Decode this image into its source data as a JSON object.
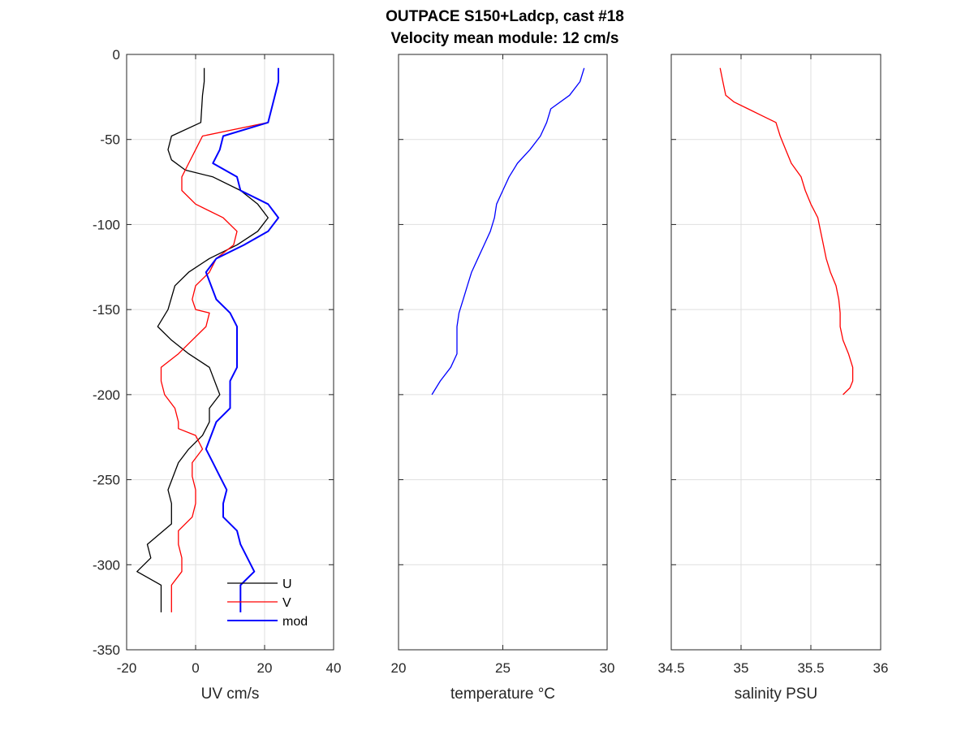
{
  "figure": {
    "title_line1": "OUTPACE S150+Ladcp, cast #18",
    "title_line2": "Velocity mean module:  12 cm/s"
  },
  "chart_data": [
    {
      "type": "line",
      "xlabel": "UV cm/s",
      "ylabel": "",
      "xlim": [
        -20,
        40
      ],
      "ylim": [
        -350,
        0
      ],
      "xticks": [
        -20,
        0,
        20,
        40
      ],
      "yticks": [
        0,
        -50,
        -100,
        -150,
        -200,
        -250,
        -300,
        -350
      ],
      "grid": true,
      "legend": {
        "placement": "bottom-right",
        "entries": [
          "U",
          "V",
          "mod"
        ]
      },
      "series": [
        {
          "name": "U",
          "color": "#000000",
          "x": [
            2.5,
            2.5,
            2,
            1.5,
            -7,
            -8,
            -7,
            -3,
            5,
            13,
            18,
            21,
            18,
            12,
            4,
            -2,
            -6,
            -8,
            -11,
            -7,
            -2,
            4,
            7,
            4,
            4,
            2,
            -2,
            -5,
            -8,
            -7,
            -7,
            -14,
            -13,
            -17,
            -10,
            -10
          ],
          "y": [
            -8,
            -16,
            -24,
            -40,
            -48,
            -56,
            -62,
            -68,
            -72,
            -80,
            -88,
            -96,
            -104,
            -112,
            -120,
            -128,
            -136,
            -150,
            -160,
            -168,
            -176,
            -184,
            -200,
            -208,
            -216,
            -224,
            -232,
            -240,
            -256,
            -264,
            -276,
            -288,
            -296,
            -304,
            -312,
            -328
          ]
        },
        {
          "name": "V",
          "color": "#ff0000",
          "x": [
            21,
            2,
            0,
            -2,
            -4,
            -4,
            0,
            8,
            12,
            11,
            6,
            4,
            0,
            -1,
            0,
            4,
            3,
            -1,
            -5,
            -10,
            -10,
            -9,
            -6,
            -5,
            -5,
            0,
            2,
            -1,
            -1,
            0,
            0,
            -1,
            -5,
            -5,
            -4,
            -4,
            -7,
            -7
          ],
          "y": [
            -40,
            -48,
            -56,
            -64,
            -72,
            -80,
            -88,
            -96,
            -104,
            -112,
            -120,
            -128,
            -136,
            -144,
            -150,
            -152,
            -160,
            -168,
            -176,
            -184,
            -192,
            -200,
            -208,
            -216,
            -220,
            -224,
            -232,
            -240,
            -248,
            -256,
            -264,
            -272,
            -280,
            -288,
            -296,
            -304,
            -312,
            -328
          ]
        },
        {
          "name": "mod",
          "color": "#0000ff",
          "x": [
            24,
            24,
            23,
            21,
            8,
            7,
            5,
            12,
            13,
            21,
            24,
            21,
            14,
            6,
            3,
            6,
            10,
            12,
            12,
            12,
            12,
            10,
            10,
            6,
            3,
            5,
            7,
            9,
            8,
            8,
            12,
            13,
            15,
            17,
            13,
            13,
            13
          ],
          "y": [
            -8,
            -16,
            -24,
            -40,
            -48,
            -56,
            -64,
            -72,
            -80,
            -88,
            -96,
            -104,
            -112,
            -120,
            -128,
            -144,
            -152,
            -160,
            -168,
            -176,
            -184,
            -192,
            -208,
            -216,
            -232,
            -240,
            -248,
            -256,
            -264,
            -272,
            -280,
            -288,
            -296,
            -304,
            -312,
            -320,
            -328
          ]
        }
      ]
    },
    {
      "type": "line",
      "xlabel": "temperature °C",
      "ylabel": "",
      "xlim": [
        20,
        30
      ],
      "ylim": [
        -350,
        0
      ],
      "xticks": [
        20,
        25,
        30
      ],
      "yticks": [
        0,
        -50,
        -100,
        -150,
        -200,
        -250,
        -300,
        -350
      ],
      "grid": true,
      "series": [
        {
          "name": "",
          "color": "#0000ff",
          "x": [
            28.9,
            28.7,
            28.2,
            27.3,
            27.1,
            26.8,
            26.3,
            25.7,
            25.3,
            25.0,
            24.7,
            24.6,
            24.4,
            24.1,
            23.8,
            23.5,
            23.3,
            23.1,
            22.9,
            22.8,
            22.8,
            22.5,
            22.0,
            21.6
          ],
          "y": [
            -8,
            -16,
            -24,
            -32,
            -40,
            -48,
            -56,
            -64,
            -72,
            -80,
            -88,
            -96,
            -104,
            -112,
            -120,
            -128,
            -136,
            -144,
            -152,
            -160,
            -176,
            -184,
            -192,
            -200
          ]
        }
      ]
    },
    {
      "type": "line",
      "xlabel": "salinity PSU",
      "ylabel": "",
      "xlim": [
        34.5,
        36
      ],
      "ylim": [
        -350,
        0
      ],
      "xticks": [
        34.5,
        35,
        35.5,
        36
      ],
      "yticks": [
        0,
        -50,
        -100,
        -150,
        -200,
        -250,
        -300,
        -350
      ],
      "grid": true,
      "series": [
        {
          "name": "",
          "color": "#ff0000",
          "x": [
            34.85,
            34.87,
            34.89,
            34.95,
            35.05,
            35.15,
            35.25,
            35.28,
            35.32,
            35.36,
            35.43,
            35.46,
            35.5,
            35.55,
            35.57,
            35.59,
            35.61,
            35.64,
            35.68,
            35.7,
            35.71,
            35.71,
            35.73,
            35.77,
            35.8,
            35.8,
            35.78,
            35.73
          ],
          "y": [
            -8,
            -16,
            -24,
            -28,
            -32,
            -36,
            -40,
            -48,
            -56,
            -64,
            -72,
            -80,
            -88,
            -96,
            -104,
            -112,
            -120,
            -128,
            -136,
            -144,
            -152,
            -160,
            -168,
            -176,
            -184,
            -192,
            -196,
            -200
          ]
        }
      ]
    }
  ]
}
